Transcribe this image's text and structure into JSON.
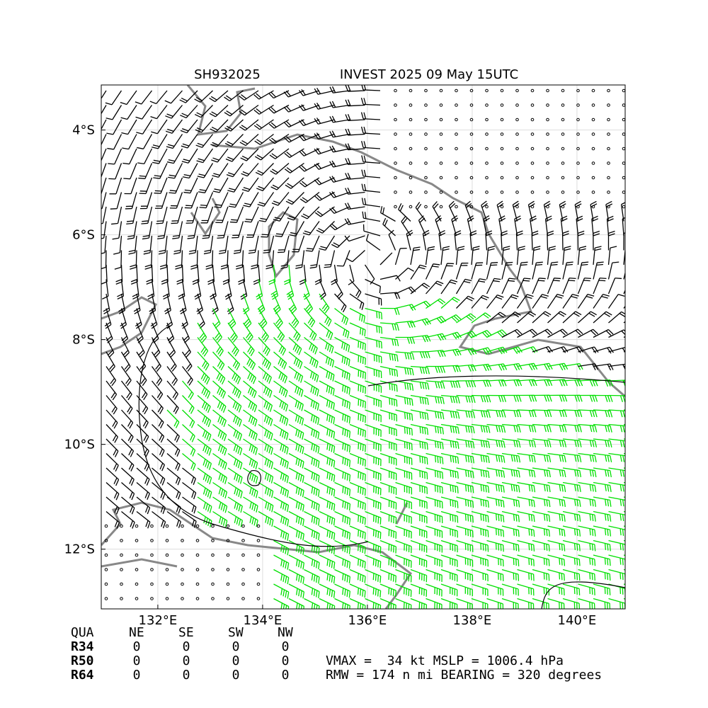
{
  "map": {
    "title_left": "SH932025",
    "title_right": "INVEST 2025 09 May 15UTC",
    "xlim": [
      130.92,
      140.92
    ],
    "ylim": [
      -13.14,
      -3.14
    ],
    "xticks": [
      {
        "value": 132,
        "label": "132°E"
      },
      {
        "value": 134,
        "label": "134°E"
      },
      {
        "value": 136,
        "label": "136°E"
      },
      {
        "value": 138,
        "label": "138°E"
      },
      {
        "value": 140,
        "label": "140°E"
      }
    ],
    "yticks": [
      {
        "value": -4,
        "label": "4°S"
      },
      {
        "value": -6,
        "label": "6°S"
      },
      {
        "value": -8,
        "label": "8°S"
      },
      {
        "value": -10,
        "label": "10°S"
      },
      {
        "value": -12,
        "label": "12°S"
      }
    ]
  },
  "table": {
    "header": [
      "QUA",
      "NE",
      "SE",
      "SW",
      "NW"
    ],
    "rows": [
      [
        "R34",
        0,
        0,
        0,
        0
      ],
      [
        "R50",
        0,
        0,
        0,
        0
      ],
      [
        "R64",
        0,
        0,
        0,
        0
      ]
    ]
  },
  "info": [
    "VMAX =  34 kt MSLP = 1006.4 hPa",
    "RMW = 174 n mi BEARING = 320 degrees"
  ]
}
